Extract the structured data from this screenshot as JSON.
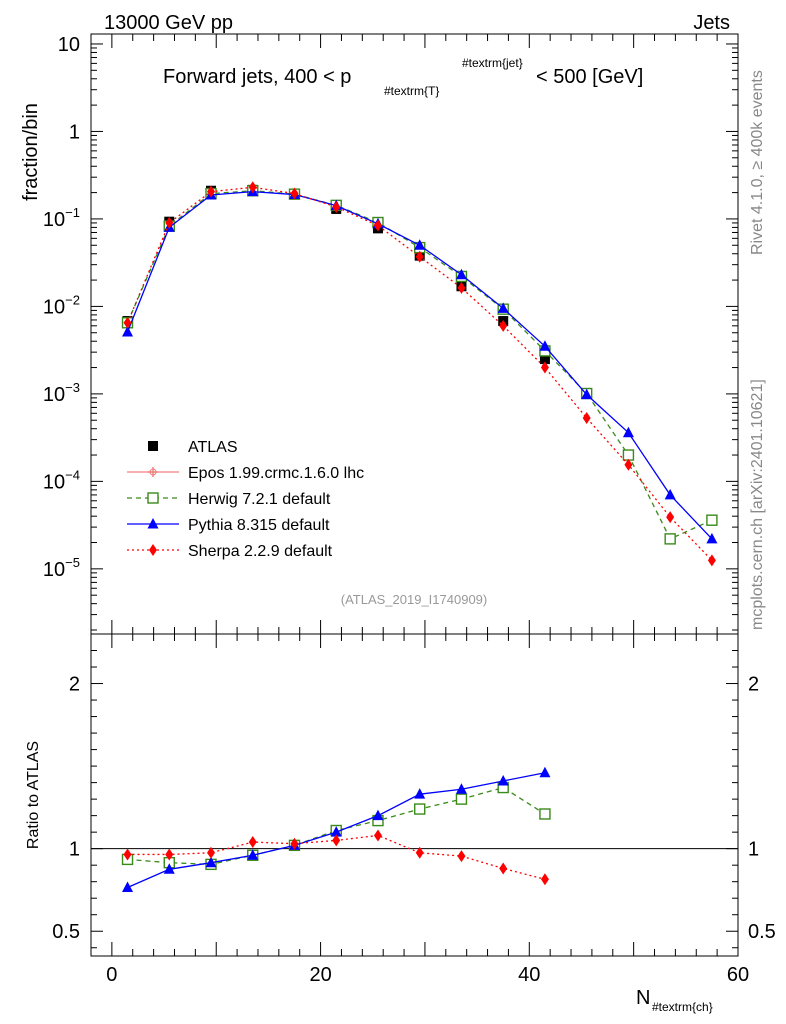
{
  "header": {
    "left": "13000 GeV pp",
    "right": "Jets"
  },
  "side_labels": {
    "top": "Rivet 4.1.0, ≥ 400k events",
    "bottom": "mcplots.cern.ch [arXiv:2401.10621]"
  },
  "colors": {
    "ATLAS": "#000000",
    "Epos": "#f08080",
    "Herwig": "#3a8a1a",
    "Pythia": "#0000ff",
    "Sherpa": "#ff0000",
    "axis": "#000000"
  },
  "chart_data": {
    "type": "scatter",
    "title": "Forward jets, 400 < p",
    "title_sub": "#textrm{T}",
    "title_sup": "#textrm{jet}",
    "title_tail": "< 500 [GeV]",
    "ref_label": "(ATLAS_2019_I1740909)",
    "xlabel_main": "N",
    "xlabel_sub": "#textrm{ch}",
    "xlim": [
      -2,
      60
    ],
    "x_ticks": [
      0,
      20,
      40,
      60
    ],
    "top": {
      "ylabel": "fraction/bin",
      "yscale": "log",
      "ylim": [
        1.8e-06,
        13
      ],
      "y_tick_labels": [
        {
          "value": 10,
          "base": "10",
          "exp": ""
        },
        {
          "value": 1,
          "base": "1",
          "exp": ""
        },
        {
          "value": 0.1,
          "base": "10",
          "exp": "−1"
        },
        {
          "value": 0.01,
          "base": "10",
          "exp": "−2"
        },
        {
          "value": 0.001,
          "base": "10",
          "exp": "−3"
        },
        {
          "value": 0.0001,
          "base": "10",
          "exp": "−4"
        },
        {
          "value": 1e-05,
          "base": "10",
          "exp": "−5"
        }
      ]
    },
    "bottom": {
      "ylabel": "Ratio to ATLAS",
      "ylim": [
        0.35,
        2.3
      ],
      "y_ticks": [
        0.5,
        1,
        2
      ],
      "y_tick_labels": [
        "0.5",
        "1",
        "2"
      ]
    },
    "series": [
      {
        "name": "ATLAS",
        "label": "ATLAS",
        "marker": "square",
        "line": "none",
        "x": [
          1.5,
          5.5,
          9.5,
          13.5,
          17.5,
          21.5,
          25.5,
          29.5,
          33.5,
          37.5,
          41.5
        ],
        "y": [
          0.0068,
          0.093,
          0.21,
          0.215,
          0.19,
          0.13,
          0.078,
          0.038,
          0.017,
          0.0068,
          0.0025
        ],
        "ratio": [
          1,
          1,
          1,
          1,
          1,
          1,
          1,
          1,
          1,
          1,
          1
        ]
      },
      {
        "name": "Epos",
        "label": "Epos  1.99.crmc.1.6.0 lhc",
        "marker": "star",
        "line": "solid",
        "x": [],
        "y": [],
        "ratio": []
      },
      {
        "name": "Herwig",
        "label": "Herwig 7.2.1 default",
        "marker": "open-square",
        "line": "dashed",
        "x": [
          1.5,
          5.5,
          9.5,
          13.5,
          17.5,
          21.5,
          25.5,
          29.5,
          33.5,
          37.5,
          41.5,
          45.5,
          49.5,
          53.5,
          57.5
        ],
        "y": [
          0.0065,
          0.083,
          0.195,
          0.21,
          0.192,
          0.143,
          0.091,
          0.047,
          0.022,
          0.0093,
          0.0031,
          0.00101,
          0.0002,
          2.2e-05,
          3.6e-05
        ],
        "ratio": [
          0.935,
          0.915,
          0.905,
          0.96,
          1.02,
          1.11,
          1.17,
          1.24,
          1.3,
          1.37,
          1.21,
          null,
          null,
          null,
          null
        ]
      },
      {
        "name": "Pythia",
        "label": "Pythia 8.315 default",
        "marker": "triangle",
        "line": "solid",
        "x": [
          1.5,
          5.5,
          9.5,
          13.5,
          17.5,
          21.5,
          25.5,
          29.5,
          33.5,
          37.5,
          41.5,
          45.5,
          49.5,
          53.5,
          57.5
        ],
        "y": [
          0.0051,
          0.08,
          0.188,
          0.205,
          0.19,
          0.142,
          0.088,
          0.05,
          0.023,
          0.0095,
          0.0035,
          0.00098,
          0.00036,
          7e-05,
          2.2e-05
        ],
        "ratio": [
          0.765,
          0.875,
          0.915,
          0.96,
          1.02,
          1.1,
          1.2,
          1.33,
          1.36,
          1.41,
          1.46,
          null,
          null,
          null,
          null
        ]
      },
      {
        "name": "Sherpa",
        "label": "Sherpa 2.2.9 default",
        "marker": "diamond",
        "line": "dotted",
        "x": [
          1.5,
          5.5,
          9.5,
          13.5,
          17.5,
          21.5,
          25.5,
          29.5,
          33.5,
          37.5,
          41.5,
          45.5,
          49.5,
          53.5,
          57.5
        ],
        "y": [
          0.0065,
          0.09,
          0.205,
          0.23,
          0.195,
          0.137,
          0.084,
          0.037,
          0.0163,
          0.006,
          0.002,
          0.00053,
          0.000155,
          3.9e-05,
          1.25e-05
        ],
        "ratio": [
          0.965,
          0.965,
          0.975,
          1.04,
          1.03,
          1.05,
          1.08,
          0.975,
          0.955,
          0.88,
          0.815,
          null,
          null,
          null,
          null
        ]
      }
    ]
  }
}
